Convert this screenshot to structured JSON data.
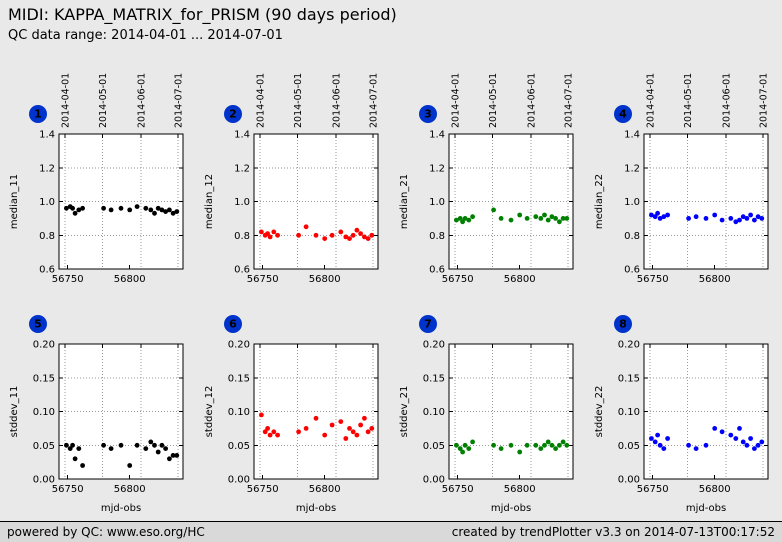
{
  "header": {
    "title": "MIDI: KAPPA_MATRIX_for_PRISM (90 days period)",
    "subtitle": "QC data range: 2014-04-01 ... 2014-07-01"
  },
  "footer": {
    "left": "powered by QC: www.eso.org/HC",
    "right": "created by trendPlotter v3.3 on 2014-07-13T00:17:52"
  },
  "colors": {
    "badge_blue": "#0033cc",
    "black_series": "#000000",
    "red_series": "#ff0000",
    "green_series": "#008000",
    "blue_series": "#0000ff",
    "page_background": "#e9e9e9",
    "plot_background": "#ffffff"
  },
  "axis": {
    "xlim": [
      56743,
      56843
    ],
    "xticks": [
      "56750",
      "56800"
    ],
    "date_ticks": [
      {
        "mjd": 56748,
        "label": "2014-04-01"
      },
      {
        "mjd": 56778,
        "label": "2014-05-01"
      },
      {
        "mjd": 56809,
        "label": "2014-06-01"
      },
      {
        "mjd": 56839,
        "label": "2014-07-01"
      }
    ],
    "xlabel": "mjd-obs"
  },
  "chart_data": [
    {
      "index": 1,
      "row": "top",
      "type": "scatter",
      "ylabel": "median_11",
      "xlabel": "",
      "color": "#000000",
      "ylim": [
        0.6,
        1.4
      ],
      "yticks": [
        "0.6",
        "0.8",
        "1.0",
        "1.2",
        "1.4"
      ],
      "x": [
        56749,
        56752,
        56754,
        56756,
        56759,
        56762,
        56779,
        56785,
        56793,
        56800,
        56806,
        56813,
        56817,
        56820,
        56823,
        56826,
        56829,
        56832,
        56835,
        56838
      ],
      "y": [
        0.96,
        0.97,
        0.96,
        0.93,
        0.95,
        0.96,
        0.96,
        0.95,
        0.96,
        0.95,
        0.97,
        0.96,
        0.95,
        0.93,
        0.96,
        0.95,
        0.94,
        0.95,
        0.93,
        0.94
      ]
    },
    {
      "index": 2,
      "row": "top",
      "type": "scatter",
      "ylabel": "median_12",
      "xlabel": "",
      "color": "#ff0000",
      "ylim": [
        0.6,
        1.4
      ],
      "yticks": [
        "0.6",
        "0.8",
        "1.0",
        "1.2",
        "1.4"
      ],
      "x": [
        56749,
        56752,
        56754,
        56756,
        56759,
        56762,
        56779,
        56785,
        56793,
        56800,
        56806,
        56813,
        56817,
        56820,
        56823,
        56826,
        56829,
        56832,
        56835,
        56838
      ],
      "y": [
        0.82,
        0.8,
        0.81,
        0.79,
        0.82,
        0.8,
        0.8,
        0.85,
        0.8,
        0.78,
        0.8,
        0.82,
        0.79,
        0.78,
        0.8,
        0.83,
        0.81,
        0.79,
        0.78,
        0.8
      ]
    },
    {
      "index": 3,
      "row": "top",
      "type": "scatter",
      "ylabel": "median_21",
      "xlabel": "",
      "color": "#008000",
      "ylim": [
        0.6,
        1.4
      ],
      "yticks": [
        "0.6",
        "0.8",
        "1.0",
        "1.2",
        "1.4"
      ],
      "x": [
        56749,
        56752,
        56754,
        56756,
        56759,
        56762,
        56779,
        56785,
        56793,
        56800,
        56806,
        56813,
        56817,
        56820,
        56823,
        56826,
        56829,
        56832,
        56835,
        56838
      ],
      "y": [
        0.89,
        0.9,
        0.88,
        0.9,
        0.89,
        0.91,
        0.95,
        0.9,
        0.89,
        0.92,
        0.9,
        0.91,
        0.9,
        0.92,
        0.89,
        0.91,
        0.9,
        0.88,
        0.9,
        0.9
      ]
    },
    {
      "index": 4,
      "row": "top",
      "type": "scatter",
      "ylabel": "median_22",
      "xlabel": "",
      "color": "#0000ff",
      "ylim": [
        0.6,
        1.4
      ],
      "yticks": [
        "0.6",
        "0.8",
        "1.0",
        "1.2",
        "1.4"
      ],
      "x": [
        56749,
        56752,
        56754,
        56756,
        56759,
        56762,
        56779,
        56785,
        56793,
        56800,
        56806,
        56813,
        56817,
        56820,
        56823,
        56826,
        56829,
        56832,
        56835,
        56838
      ],
      "y": [
        0.92,
        0.91,
        0.93,
        0.9,
        0.91,
        0.92,
        0.9,
        0.91,
        0.9,
        0.92,
        0.89,
        0.9,
        0.88,
        0.89,
        0.91,
        0.9,
        0.92,
        0.89,
        0.91,
        0.9
      ]
    },
    {
      "index": 5,
      "row": "bottom",
      "type": "scatter",
      "ylabel": "stddev_11",
      "xlabel": "mjd-obs",
      "color": "#000000",
      "ylim": [
        0.0,
        0.2
      ],
      "yticks": [
        "0.00",
        "0.05",
        "0.10",
        "0.15",
        "0.20"
      ],
      "x": [
        56749,
        56752,
        56754,
        56756,
        56759,
        56762,
        56779,
        56785,
        56793,
        56800,
        56806,
        56813,
        56817,
        56820,
        56823,
        56826,
        56829,
        56832,
        56835,
        56838
      ],
      "y": [
        0.05,
        0.045,
        0.05,
        0.03,
        0.045,
        0.02,
        0.05,
        0.045,
        0.05,
        0.02,
        0.05,
        0.045,
        0.055,
        0.05,
        0.04,
        0.05,
        0.045,
        0.03,
        0.035,
        0.035
      ]
    },
    {
      "index": 6,
      "row": "bottom",
      "type": "scatter",
      "ylabel": "stddev_12",
      "xlabel": "mjd-obs",
      "color": "#ff0000",
      "ylim": [
        0.0,
        0.2
      ],
      "yticks": [
        "0.00",
        "0.05",
        "0.10",
        "0.15",
        "0.20"
      ],
      "x": [
        56749,
        56752,
        56754,
        56756,
        56759,
        56762,
        56779,
        56785,
        56793,
        56800,
        56806,
        56813,
        56817,
        56820,
        56823,
        56826,
        56829,
        56832,
        56835,
        56838
      ],
      "y": [
        0.095,
        0.07,
        0.075,
        0.065,
        0.07,
        0.065,
        0.07,
        0.075,
        0.09,
        0.065,
        0.08,
        0.085,
        0.06,
        0.075,
        0.07,
        0.065,
        0.08,
        0.09,
        0.07,
        0.075
      ]
    },
    {
      "index": 7,
      "row": "bottom",
      "type": "scatter",
      "ylabel": "stddev_21",
      "xlabel": "mjd-obs",
      "color": "#008000",
      "ylim": [
        0.0,
        0.2
      ],
      "yticks": [
        "0.00",
        "0.05",
        "0.10",
        "0.15",
        "0.20"
      ],
      "x": [
        56749,
        56752,
        56754,
        56756,
        56759,
        56762,
        56779,
        56785,
        56793,
        56800,
        56806,
        56813,
        56817,
        56820,
        56823,
        56826,
        56829,
        56832,
        56835,
        56838
      ],
      "y": [
        0.05,
        0.045,
        0.04,
        0.05,
        0.045,
        0.055,
        0.05,
        0.045,
        0.05,
        0.04,
        0.05,
        0.05,
        0.045,
        0.05,
        0.055,
        0.05,
        0.045,
        0.05,
        0.055,
        0.05
      ]
    },
    {
      "index": 8,
      "row": "bottom",
      "type": "scatter",
      "ylabel": "stddev_22",
      "xlabel": "mjd-obs",
      "color": "#0000ff",
      "ylim": [
        0.0,
        0.2
      ],
      "yticks": [
        "0.00",
        "0.05",
        "0.10",
        "0.15",
        "0.20"
      ],
      "x": [
        56749,
        56752,
        56754,
        56756,
        56759,
        56762,
        56779,
        56785,
        56793,
        56800,
        56806,
        56813,
        56817,
        56820,
        56823,
        56826,
        56829,
        56832,
        56835,
        56838
      ],
      "y": [
        0.06,
        0.055,
        0.065,
        0.05,
        0.045,
        0.06,
        0.05,
        0.045,
        0.05,
        0.075,
        0.07,
        0.065,
        0.06,
        0.075,
        0.055,
        0.05,
        0.06,
        0.045,
        0.05,
        0.055
      ]
    }
  ]
}
